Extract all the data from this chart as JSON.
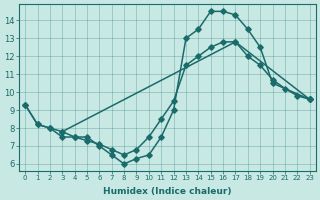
{
  "bg_color": "#c8e8e4",
  "line_color": "#1a6b6b",
  "xlabel": "Humidex (Indice chaleur)",
  "xlim": [
    -0.5,
    23.5
  ],
  "ylim": [
    5.6,
    14.9
  ],
  "yticks": [
    6,
    7,
    8,
    9,
    10,
    11,
    12,
    13,
    14
  ],
  "xticks": [
    0,
    1,
    2,
    3,
    4,
    5,
    6,
    7,
    8,
    9,
    10,
    11,
    12,
    13,
    14,
    15,
    16,
    17,
    18,
    19,
    20,
    21,
    22,
    23
  ],
  "series1_x": [
    0,
    1,
    2,
    3,
    4,
    5,
    6,
    7,
    8,
    9,
    10,
    11,
    12,
    13,
    14,
    15,
    16,
    17,
    18,
    19,
    20,
    23
  ],
  "series1_y": [
    9.3,
    8.2,
    8.0,
    7.5,
    7.5,
    7.5,
    7.0,
    6.5,
    6.0,
    6.3,
    6.5,
    7.5,
    9.0,
    13.0,
    13.5,
    14.5,
    14.5,
    14.3,
    13.5,
    12.5,
    10.5,
    9.6
  ],
  "series2_x": [
    0,
    1,
    2,
    3,
    17,
    18,
    19,
    20,
    21,
    22,
    23
  ],
  "series2_y": [
    9.3,
    8.2,
    8.0,
    7.8,
    12.8,
    12.0,
    11.5,
    10.7,
    10.2,
    9.8,
    9.6
  ],
  "series3_x": [
    3,
    4,
    5,
    6,
    7,
    8,
    9,
    10,
    11,
    12,
    13,
    14,
    15,
    16,
    17,
    23
  ],
  "series3_y": [
    7.8,
    7.5,
    7.3,
    7.1,
    6.8,
    6.5,
    6.8,
    7.5,
    8.5,
    9.5,
    11.5,
    12.0,
    12.5,
    12.8,
    12.8,
    9.6
  ]
}
